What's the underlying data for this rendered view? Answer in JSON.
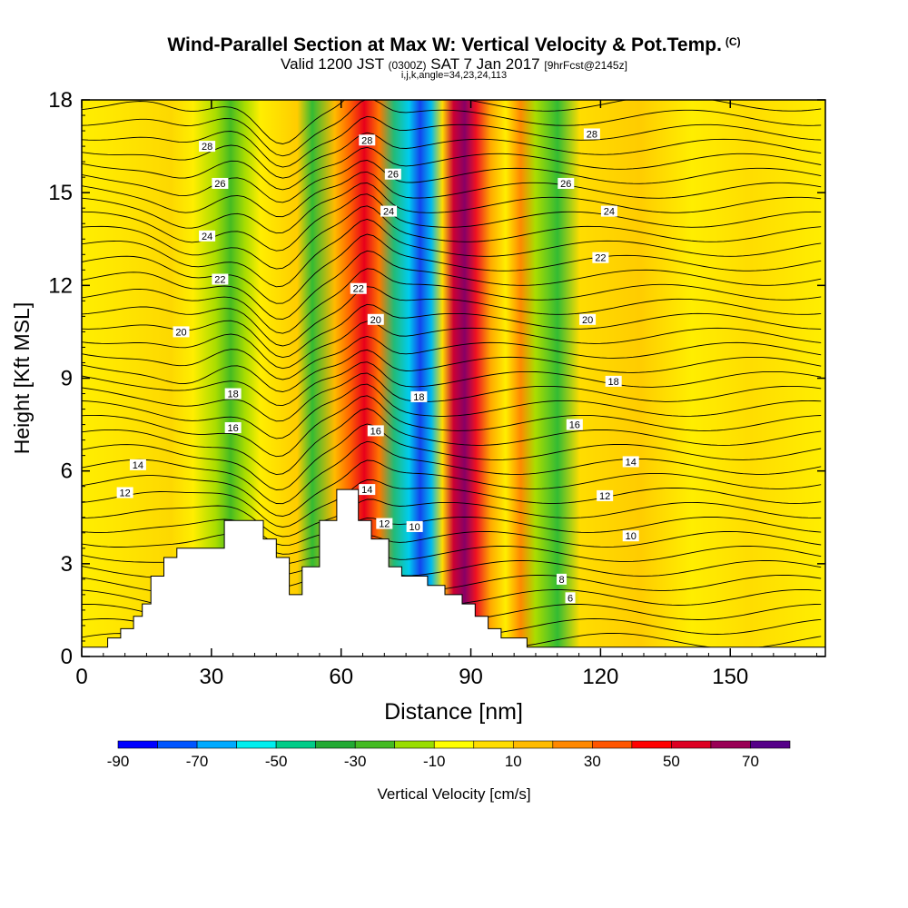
{
  "chart_data": {
    "type": "heatmap",
    "title": "Wind-Parallel Section at Max W: Vertical Velocity & Pot.Temp.",
    "title_tag": "(C)",
    "subtitle": {
      "valid": "Valid 1200 JST",
      "utc": "(0300Z)",
      "date": "SAT 7 Jan 2017",
      "forecast": "[9hrFcst@2145z]"
    },
    "section_params": "i,j,k,angle=34,23,24,113",
    "xlabel": "Distance [nm]",
    "ylabel": "Height [Kft MSL]",
    "xlim": [
      0,
      172
    ],
    "ylim": [
      0,
      18
    ],
    "xticks": [
      0,
      30,
      60,
      90,
      120,
      150
    ],
    "yticks": [
      0,
      3,
      6,
      9,
      12,
      15,
      18
    ],
    "colorbar": {
      "label": "Vertical Velocity [cm/s]",
      "levels": [
        -90,
        -80,
        -70,
        -60,
        -50,
        -40,
        -30,
        -20,
        -10,
        0,
        10,
        20,
        30,
        40,
        50,
        60,
        70,
        80
      ],
      "tick_labels": [
        "-90",
        "-70",
        "-50",
        "-30",
        "-10",
        "10",
        "30",
        "50",
        "70"
      ],
      "tick_values": [
        -90,
        -70,
        -50,
        -30,
        -10,
        10,
        30,
        50,
        70
      ],
      "colors": [
        "#0000ff",
        "#0055ff",
        "#00aaff",
        "#00eeee",
        "#00cc88",
        "#22aa33",
        "#44bb22",
        "#99dd00",
        "#ffff00",
        "#ffdd00",
        "#ffbb00",
        "#ff8800",
        "#ff5500",
        "#ff0000",
        "#dd0022",
        "#990055",
        "#550088"
      ]
    },
    "terrain_profile": [
      {
        "x": 0,
        "y": 0.3
      },
      {
        "x": 6,
        "y": 0.3
      },
      {
        "x": 6,
        "y": 0.6
      },
      {
        "x": 9,
        "y": 0.6
      },
      {
        "x": 9,
        "y": 0.9
      },
      {
        "x": 12,
        "y": 0.9
      },
      {
        "x": 12,
        "y": 1.3
      },
      {
        "x": 14,
        "y": 1.3
      },
      {
        "x": 14,
        "y": 1.7
      },
      {
        "x": 16,
        "y": 1.7
      },
      {
        "x": 16,
        "y": 2.6
      },
      {
        "x": 19,
        "y": 2.6
      },
      {
        "x": 19,
        "y": 3.2
      },
      {
        "x": 22,
        "y": 3.2
      },
      {
        "x": 22,
        "y": 3.5
      },
      {
        "x": 33,
        "y": 3.5
      },
      {
        "x": 33,
        "y": 4.4
      },
      {
        "x": 42,
        "y": 4.4
      },
      {
        "x": 42,
        "y": 3.8
      },
      {
        "x": 45,
        "y": 3.8
      },
      {
        "x": 45,
        "y": 3.2
      },
      {
        "x": 48,
        "y": 3.2
      },
      {
        "x": 48,
        "y": 2.0
      },
      {
        "x": 51,
        "y": 2.0
      },
      {
        "x": 51,
        "y": 2.9
      },
      {
        "x": 55,
        "y": 2.9
      },
      {
        "x": 55,
        "y": 4.4
      },
      {
        "x": 59,
        "y": 4.4
      },
      {
        "x": 59,
        "y": 5.4
      },
      {
        "x": 64,
        "y": 5.4
      },
      {
        "x": 64,
        "y": 4.4
      },
      {
        "x": 67,
        "y": 4.4
      },
      {
        "x": 67,
        "y": 3.8
      },
      {
        "x": 71,
        "y": 3.8
      },
      {
        "x": 71,
        "y": 2.9
      },
      {
        "x": 74,
        "y": 2.9
      },
      {
        "x": 74,
        "y": 2.6
      },
      {
        "x": 80,
        "y": 2.6
      },
      {
        "x": 80,
        "y": 2.3
      },
      {
        "x": 84,
        "y": 2.3
      },
      {
        "x": 84,
        "y": 2.0
      },
      {
        "x": 88,
        "y": 2.0
      },
      {
        "x": 88,
        "y": 1.7
      },
      {
        "x": 91,
        "y": 1.7
      },
      {
        "x": 91,
        "y": 1.3
      },
      {
        "x": 94,
        "y": 1.3
      },
      {
        "x": 94,
        "y": 0.9
      },
      {
        "x": 97,
        "y": 0.9
      },
      {
        "x": 97,
        "y": 0.6
      },
      {
        "x": 103,
        "y": 0.6
      },
      {
        "x": 103,
        "y": 0.3
      },
      {
        "x": 172,
        "y": 0.3
      }
    ],
    "contour_labels": [
      {
        "x": 29,
        "y": 16.5,
        "text": "28"
      },
      {
        "x": 32,
        "y": 15.3,
        "text": "26"
      },
      {
        "x": 29,
        "y": 13.6,
        "text": "24"
      },
      {
        "x": 32,
        "y": 12.2,
        "text": "22"
      },
      {
        "x": 23,
        "y": 10.5,
        "text": "20"
      },
      {
        "x": 35,
        "y": 8.5,
        "text": "18"
      },
      {
        "x": 35,
        "y": 7.4,
        "text": "16"
      },
      {
        "x": 13,
        "y": 6.2,
        "text": "14"
      },
      {
        "x": 10,
        "y": 5.3,
        "text": "12"
      },
      {
        "x": 66,
        "y": 16.7,
        "text": "28"
      },
      {
        "x": 72,
        "y": 15.6,
        "text": "26"
      },
      {
        "x": 71,
        "y": 14.4,
        "text": "24"
      },
      {
        "x": 64,
        "y": 11.9,
        "text": "22"
      },
      {
        "x": 68,
        "y": 10.9,
        "text": "20"
      },
      {
        "x": 78,
        "y": 8.4,
        "text": "18"
      },
      {
        "x": 68,
        "y": 7.3,
        "text": "16"
      },
      {
        "x": 66,
        "y": 5.4,
        "text": "14"
      },
      {
        "x": 70,
        "y": 4.3,
        "text": "12"
      },
      {
        "x": 77,
        "y": 4.2,
        "text": "10"
      },
      {
        "x": 118,
        "y": 16.9,
        "text": "28"
      },
      {
        "x": 112,
        "y": 15.3,
        "text": "26"
      },
      {
        "x": 122,
        "y": 14.4,
        "text": "24"
      },
      {
        "x": 120,
        "y": 12.9,
        "text": "22"
      },
      {
        "x": 117,
        "y": 10.9,
        "text": "20"
      },
      {
        "x": 123,
        "y": 8.9,
        "text": "18"
      },
      {
        "x": 114,
        "y": 7.5,
        "text": "16"
      },
      {
        "x": 127,
        "y": 6.3,
        "text": "14"
      },
      {
        "x": 121,
        "y": 5.2,
        "text": "12"
      },
      {
        "x": 127,
        "y": 3.9,
        "text": "10"
      },
      {
        "x": 111,
        "y": 2.5,
        "text": "8"
      },
      {
        "x": 113,
        "y": 1.9,
        "text": "6"
      }
    ],
    "contour_count": 38
  }
}
